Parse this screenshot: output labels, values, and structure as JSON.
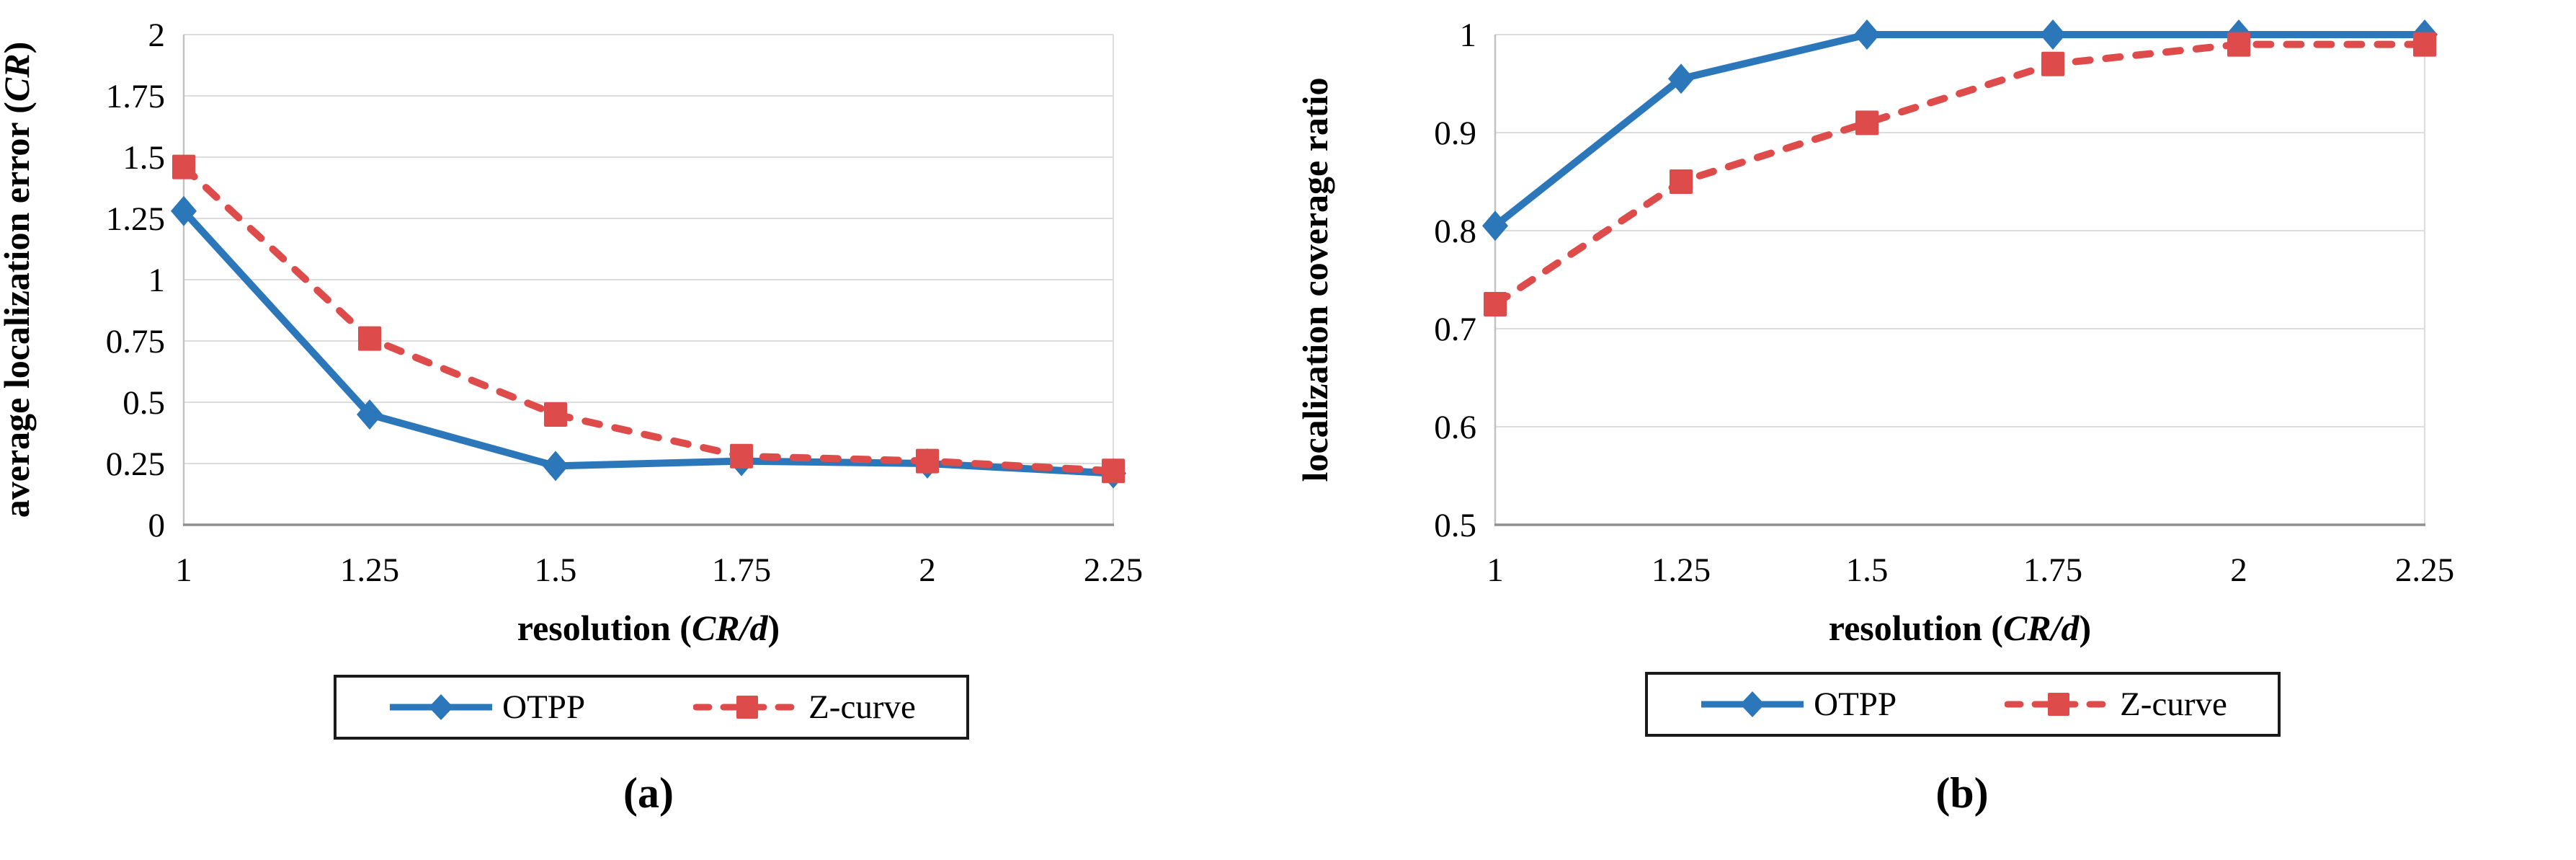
{
  "figure": {
    "captions": {
      "a": "(a)",
      "b": "(b)"
    }
  },
  "chart_data": [
    {
      "type": "line",
      "panel": "a",
      "x": [
        1,
        1.25,
        1.5,
        1.75,
        2,
        2.25
      ],
      "x_tick_labels": [
        "1",
        "1.25",
        "1.5",
        "1.75",
        "2",
        "2.25"
      ],
      "xlabel": "resolution (CR/d)",
      "xlabel_parts": [
        {
          "text": "resolution (",
          "italic": false
        },
        {
          "text": "CR/d",
          "italic": true
        },
        {
          "text": ")",
          "italic": false
        }
      ],
      "ylabel": "average localization error (CR)",
      "ylabel_parts": [
        {
          "text": "average localization error (",
          "italic": false
        },
        {
          "text": "CR",
          "italic": true
        },
        {
          "text": ")",
          "italic": false
        }
      ],
      "ylim": [
        0,
        2
      ],
      "ytick_step": 0.25,
      "y_tick_labels": [
        "0",
        "0.25",
        "0.5",
        "0.75",
        "1",
        "1.25",
        "1.5",
        "1.75",
        "2"
      ],
      "grid": true,
      "legend_position": "bottom",
      "series": [
        {
          "name": "OTPP",
          "color": "#2B77B9",
          "marker": "diamond",
          "line_style": "solid",
          "values": [
            1.28,
            0.45,
            0.24,
            0.26,
            0.25,
            0.21
          ]
        },
        {
          "name": "Z-curve",
          "color": "#DE4B4B",
          "marker": "square",
          "line_style": "dashed",
          "values": [
            1.46,
            0.76,
            0.45,
            0.28,
            0.26,
            0.22
          ]
        }
      ]
    },
    {
      "type": "line",
      "panel": "b",
      "x": [
        1,
        1.25,
        1.5,
        1.75,
        2,
        2.25
      ],
      "x_tick_labels": [
        "1",
        "1.25",
        "1.5",
        "1.75",
        "2",
        "2.25"
      ],
      "xlabel": "resolution (CR/d)",
      "xlabel_parts": [
        {
          "text": "resolution (",
          "italic": false
        },
        {
          "text": "CR/d",
          "italic": true
        },
        {
          "text": ")",
          "italic": false
        }
      ],
      "ylabel": "localization coverage ratio",
      "ylabel_parts": [
        {
          "text": "localization coverage ratio",
          "italic": false
        }
      ],
      "ylim": [
        0.5,
        1.0
      ],
      "ytick_step": 0.1,
      "y_tick_labels": [
        "0.5",
        "0.6",
        "0.7",
        "0.8",
        "0.9",
        "1"
      ],
      "grid": true,
      "legend_position": "bottom",
      "series": [
        {
          "name": "OTPP",
          "color": "#2B77B9",
          "marker": "diamond",
          "line_style": "solid",
          "values": [
            0.805,
            0.955,
            1.0,
            1.0,
            1.0,
            1.0
          ]
        },
        {
          "name": "Z-curve",
          "color": "#DE4B4B",
          "marker": "square",
          "line_style": "dashed",
          "values": [
            0.725,
            0.85,
            0.91,
            0.97,
            0.99,
            0.99
          ]
        }
      ]
    }
  ],
  "style": {
    "gridline_color": "#DCDCDC",
    "plot_border_color": "#C2C2C2",
    "axis_line_color": "#8F8F8F",
    "text_color": "#000000"
  }
}
